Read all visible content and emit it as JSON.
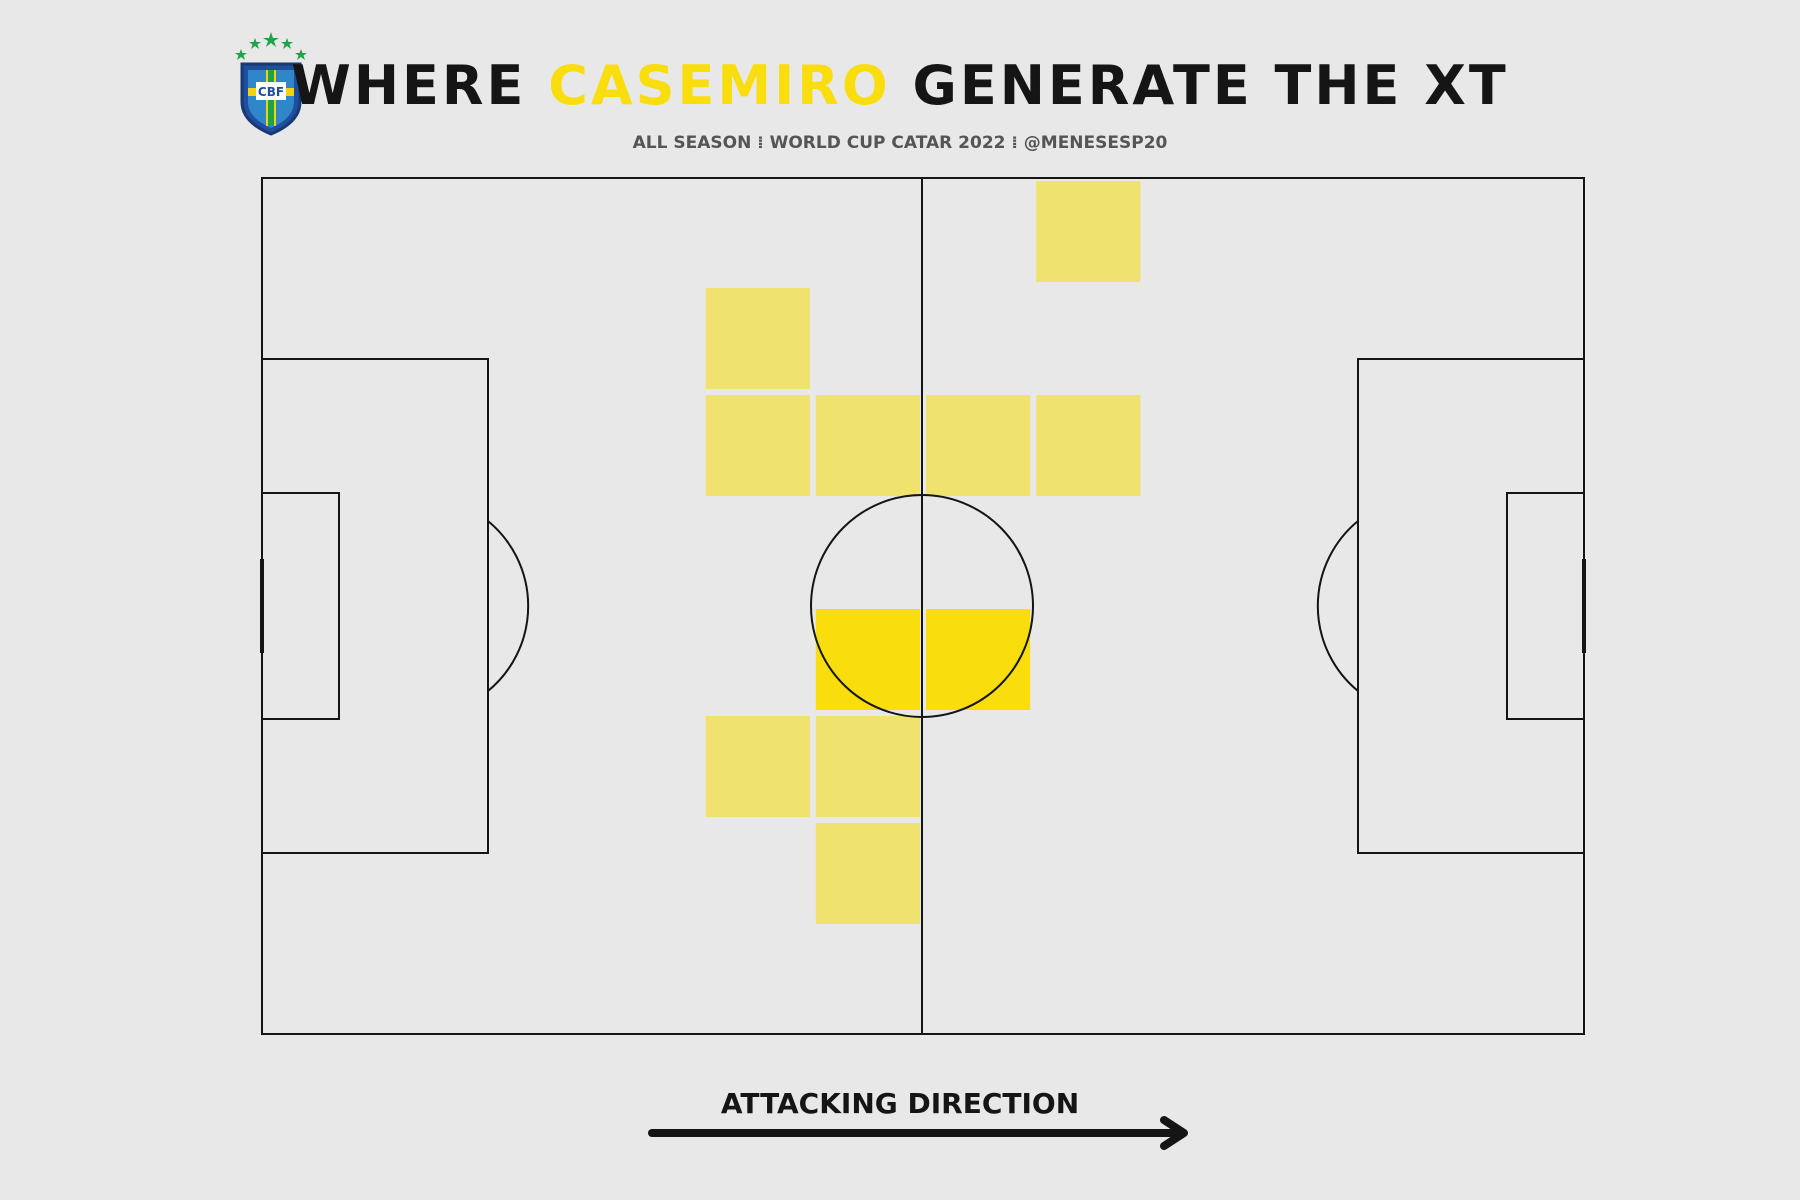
{
  "header": {
    "title_part1": "WHERE ",
    "title_highlight": "CASEMIRO",
    "title_part2": " GENERATE THE XT",
    "subtitle": "ALL SEASON ⁞ WORLD CUP CATAR 2022 ⁞ @MENESESP20"
  },
  "logo": {
    "icon": "cbf-crest-icon",
    "text": "CBF"
  },
  "footer": {
    "direction_label": "ATTACKING DIRECTION",
    "direction_icon": "right-arrow-icon"
  },
  "colors": {
    "background": "#e8e8e8",
    "lines": "#151515",
    "accent": "#f9dd0c",
    "cell_low": "#f0e26e",
    "cell_high": "#f9dd0c"
  },
  "chart_data": {
    "type": "heatmap",
    "pitch": {
      "length": 120,
      "width": 80
    },
    "grid": {
      "columns": 12,
      "rows": 8
    },
    "attacking_direction": "right",
    "cells": [
      {
        "col": 7,
        "row": 0,
        "intensity": "low"
      },
      {
        "col": 4,
        "row": 1,
        "intensity": "low"
      },
      {
        "col": 4,
        "row": 2,
        "intensity": "low"
      },
      {
        "col": 5,
        "row": 2,
        "intensity": "low"
      },
      {
        "col": 6,
        "row": 2,
        "intensity": "low"
      },
      {
        "col": 7,
        "row": 2,
        "intensity": "low"
      },
      {
        "col": 5,
        "row": 4,
        "intensity": "high"
      },
      {
        "col": 6,
        "row": 4,
        "intensity": "high"
      },
      {
        "col": 4,
        "row": 5,
        "intensity": "low"
      },
      {
        "col": 5,
        "row": 5,
        "intensity": "low"
      },
      {
        "col": 5,
        "row": 6,
        "intensity": "low"
      }
    ]
  }
}
